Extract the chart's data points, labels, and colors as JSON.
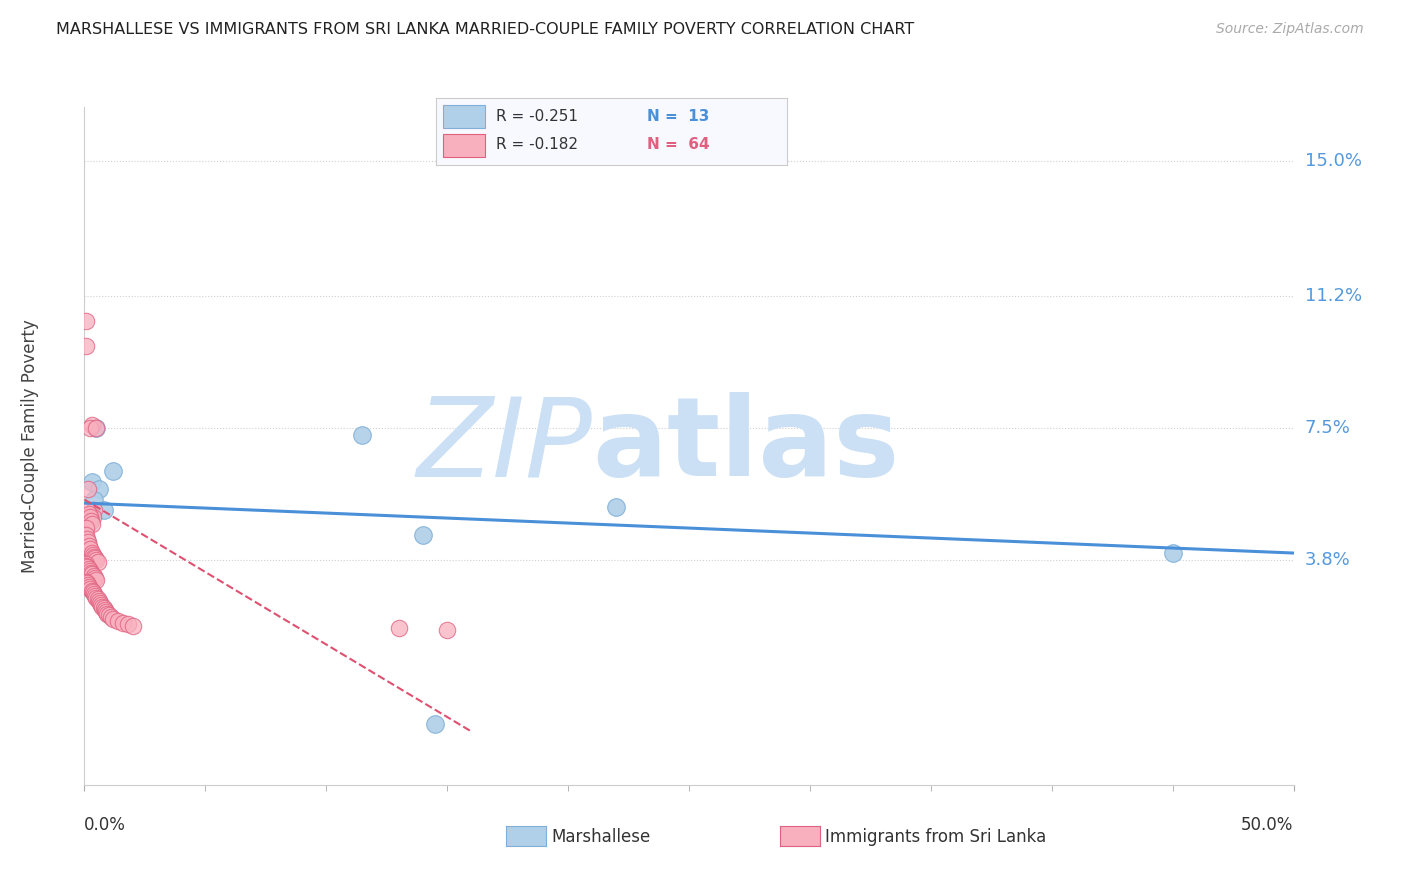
{
  "title": "MARSHALLESE VS IMMIGRANTS FROM SRI LANKA MARRIED-COUPLE FAMILY POVERTY CORRELATION CHART",
  "source": "Source: ZipAtlas.com",
  "ylabel": "Married-Couple Family Poverty",
  "xlim": [
    0.0,
    50.0
  ],
  "ylim": [
    -2.5,
    16.5
  ],
  "ytick_labels": [
    "3.8%",
    "7.5%",
    "11.2%",
    "15.0%"
  ],
  "ytick_values": [
    3.8,
    7.5,
    11.2,
    15.0
  ],
  "watermark": "ZIPatlas",
  "watermark_color": "#cce0f5",
  "grid_color": "#d0d0d0",
  "background_color": "#ffffff",
  "blue_series": {
    "name": "Marshallese",
    "R": -0.251,
    "N": 13,
    "face_color": "#b0cfe8",
    "edge_color": "#80b0d8",
    "points_x": [
      0.5,
      1.2,
      0.3,
      0.6,
      0.4,
      0.8,
      0.2,
      11.5,
      22.0,
      14.0,
      45.0,
      0.1,
      14.5
    ],
    "points_y": [
      7.5,
      6.3,
      6.0,
      5.8,
      5.5,
      5.2,
      5.0,
      7.3,
      5.3,
      4.5,
      4.0,
      4.3,
      -0.8
    ],
    "trend_color": "#4a90d9",
    "trend_x": [
      0.0,
      50.0
    ],
    "trend_y": [
      5.4,
      4.0
    ],
    "trend_ls": "solid",
    "trend_lw": 2.2
  },
  "pink_series": {
    "name": "Immigrants from Sri Lanka",
    "R": -0.182,
    "N": 64,
    "face_color": "#f8b0be",
    "edge_color": "#e06080",
    "points_x": [
      0.05,
      0.08,
      0.3,
      0.25,
      0.5,
      0.15,
      0.4,
      0.35,
      0.1,
      0.12,
      0.18,
      0.22,
      0.28,
      0.32,
      0.05,
      0.08,
      0.1,
      0.15,
      0.2,
      0.25,
      0.3,
      0.35,
      0.4,
      0.45,
      0.5,
      0.55,
      0.05,
      0.08,
      0.12,
      0.18,
      0.22,
      0.28,
      0.32,
      0.38,
      0.42,
      0.48,
      0.05,
      0.1,
      0.15,
      0.2,
      0.25,
      0.3,
      0.35,
      0.4,
      0.45,
      0.5,
      0.55,
      0.6,
      0.65,
      0.7,
      0.75,
      0.8,
      0.85,
      0.9,
      0.95,
      1.0,
      1.1,
      1.2,
      1.4,
      1.6,
      1.8,
      2.0,
      13.0,
      15.0
    ],
    "points_y": [
      10.5,
      9.8,
      7.6,
      7.5,
      7.5,
      5.8,
      5.2,
      5.0,
      5.0,
      5.2,
      5.1,
      5.0,
      4.9,
      4.8,
      4.7,
      4.5,
      4.4,
      4.3,
      4.2,
      4.1,
      4.0,
      3.95,
      3.9,
      3.85,
      3.8,
      3.75,
      3.7,
      3.65,
      3.6,
      3.55,
      3.5,
      3.45,
      3.4,
      3.35,
      3.3,
      3.25,
      3.2,
      3.15,
      3.1,
      3.05,
      3.0,
      2.95,
      2.9,
      2.85,
      2.8,
      2.75,
      2.7,
      2.65,
      2.6,
      2.55,
      2.5,
      2.45,
      2.4,
      2.35,
      2.3,
      2.25,
      2.2,
      2.15,
      2.1,
      2.05,
      2.0,
      1.95,
      1.9,
      1.85
    ],
    "trend_color": "#e05070",
    "trend_x": [
      0.0,
      16.0
    ],
    "trend_y": [
      5.5,
      -1.0
    ],
    "trend_ls": "dashed",
    "trend_lw": 1.5
  },
  "legend_color_blue": "#b0cfe8",
  "legend_color_pink": "#f8b0be",
  "legend_edge_blue": "#80b0d8",
  "legend_edge_pink": "#e06080",
  "legend_R_blue": "R = -0.251",
  "legend_N_blue": "N =  13",
  "legend_R_pink": "R = -0.182",
  "legend_N_pink": "N =  64"
}
